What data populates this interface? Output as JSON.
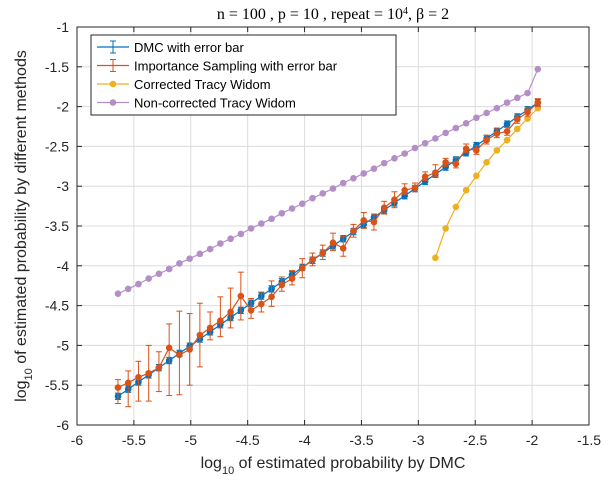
{
  "chart_data": {
    "type": "line",
    "title": "n = 100 , p = 10 , repeat = 10^4, β = 2",
    "title_parts": {
      "prefix": "n = 100 , p = 10 , repeat = 10",
      "sup": "4",
      "suffix": ", β = 2"
    },
    "xlabel": "log10 of estimated probability by DMC",
    "xlabel_parts": {
      "pre": "log",
      "sub": "10",
      "post": " of estimated probability by DMC"
    },
    "ylabel": "log10 of estimated probability by different methods",
    "ylabel_parts": {
      "pre": "log",
      "sub": "10",
      "post": " of estimated probability by different methods"
    },
    "xlim": [
      -6,
      -1.5
    ],
    "ylim": [
      -6,
      -1
    ],
    "x_ticks": [
      -6,
      -5.5,
      -5,
      -4.5,
      -4,
      -3.5,
      -3,
      -2.5,
      -2,
      -1.5
    ],
    "x_tick_labels": [
      "-6",
      "-5.5",
      "-5",
      "-4.5",
      "-4",
      "-3.5",
      "-3",
      "-2.5",
      "-2",
      "-1.5"
    ],
    "y_ticks": [
      -6,
      -5.5,
      -5,
      -4.5,
      -4,
      -3.5,
      -3,
      -2.5,
      -2,
      -1.5,
      -1
    ],
    "y_tick_labels": [
      "-6",
      "-5.5",
      "-5",
      "-4.5",
      "-4",
      "-3.5",
      "-3",
      "-2.5",
      "-2",
      "-1.5",
      "-1"
    ],
    "grid": true,
    "legend_position": "top-left",
    "series": [
      {
        "name": "DMC with error bar",
        "color": "#0072bd",
        "marker": "dot",
        "errorbar": true,
        "x": [
          -5.64,
          -5.55,
          -5.46,
          -5.37,
          -5.28,
          -5.19,
          -5.1,
          -5.01,
          -4.92,
          -4.83,
          -4.74,
          -4.65,
          -4.56,
          -4.47,
          -4.38,
          -4.29,
          -4.2,
          -4.11,
          -4.02,
          -3.93,
          -3.84,
          -3.75,
          -3.66,
          -3.57,
          -3.48,
          -3.39,
          -3.3,
          -3.21,
          -3.12,
          -3.03,
          -2.94,
          -2.85,
          -2.76,
          -2.67,
          -2.58,
          -2.49,
          -2.4,
          -2.31,
          -2.22,
          -2.13,
          -2.04,
          -1.95
        ],
        "y": [
          -5.64,
          -5.55,
          -5.46,
          -5.37,
          -5.28,
          -5.19,
          -5.1,
          -5.01,
          -4.92,
          -4.83,
          -4.74,
          -4.65,
          -4.56,
          -4.47,
          -4.38,
          -4.29,
          -4.2,
          -4.11,
          -4.02,
          -3.93,
          -3.84,
          -3.75,
          -3.66,
          -3.57,
          -3.48,
          -3.39,
          -3.3,
          -3.21,
          -3.12,
          -3.03,
          -2.94,
          -2.85,
          -2.76,
          -2.67,
          -2.58,
          -2.49,
          -2.4,
          -2.31,
          -2.22,
          -2.13,
          -2.04,
          -1.95
        ],
        "err": [
          0.04,
          0.04,
          0.04,
          0.04,
          0.04,
          0.04,
          0.04,
          0.04,
          0.04,
          0.04,
          0.04,
          0.04,
          0.04,
          0.04,
          0.04,
          0.04,
          0.04,
          0.04,
          0.04,
          0.04,
          0.04,
          0.04,
          0.04,
          0.04,
          0.04,
          0.04,
          0.04,
          0.04,
          0.04,
          0.04,
          0.04,
          0.04,
          0.04,
          0.04,
          0.04,
          0.04,
          0.04,
          0.04,
          0.04,
          0.04,
          0.04,
          0.04
        ]
      },
      {
        "name": "Importance Sampling with error bar",
        "color": "#d95319",
        "marker": "dot",
        "errorbar": true,
        "x": [
          -5.64,
          -5.55,
          -5.46,
          -5.37,
          -5.28,
          -5.19,
          -5.1,
          -5.01,
          -4.92,
          -4.83,
          -4.74,
          -4.65,
          -4.56,
          -4.47,
          -4.38,
          -4.29,
          -4.2,
          -4.11,
          -4.02,
          -3.93,
          -3.84,
          -3.75,
          -3.66,
          -3.57,
          -3.48,
          -3.39,
          -3.3,
          -3.21,
          -3.12,
          -3.03,
          -2.94,
          -2.85,
          -2.76,
          -2.67,
          -2.58,
          -2.49,
          -2.4,
          -2.31,
          -2.22,
          -2.13,
          -2.04,
          -1.95
        ],
        "y": [
          -5.53,
          -5.47,
          -5.4,
          -5.35,
          -5.28,
          -5.03,
          -5.12,
          -5.05,
          -4.87,
          -4.78,
          -4.69,
          -4.58,
          -4.38,
          -4.56,
          -4.48,
          -4.39,
          -4.24,
          -4.16,
          -4.03,
          -3.92,
          -3.84,
          -3.71,
          -3.78,
          -3.56,
          -3.43,
          -3.45,
          -3.27,
          -3.17,
          -3.05,
          -3.02,
          -2.88,
          -2.83,
          -2.7,
          -2.72,
          -2.53,
          -2.55,
          -2.42,
          -2.34,
          -2.31,
          -2.16,
          -2.07,
          -1.95
        ],
        "err_low": [
          0.2,
          0.3,
          0.3,
          0.35,
          0.3,
          0.6,
          0.5,
          0.45,
          0.4,
          0.15,
          0.2,
          0.2,
          0.3,
          0.1,
          0.1,
          0.12,
          0.08,
          0.08,
          0.12,
          0.08,
          0.08,
          0.1,
          0.1,
          0.08,
          0.1,
          0.1,
          0.08,
          0.1,
          0.05,
          0.05,
          0.05,
          0.05,
          0.05,
          0.05,
          0.05,
          0.05,
          0.05,
          0.05,
          0.05,
          0.05,
          0.05,
          0.05
        ],
        "err_high": [
          0.1,
          0.15,
          0.2,
          0.35,
          0.2,
          0.3,
          0.55,
          0.45,
          0.4,
          0.2,
          0.3,
          0.3,
          0.3,
          0.15,
          0.15,
          0.2,
          0.1,
          0.1,
          0.12,
          0.08,
          0.1,
          0.12,
          0.15,
          0.08,
          0.1,
          0.1,
          0.08,
          0.1,
          0.08,
          0.06,
          0.06,
          0.1,
          0.05,
          0.08,
          0.06,
          0.06,
          0.06,
          0.06,
          0.05,
          0.05,
          0.05,
          0.05
        ]
      },
      {
        "name": "Corrected Tracy Widom",
        "color": "#edb120",
        "marker": "dot",
        "errorbar": false,
        "x": [
          -2.85,
          -2.76,
          -2.67,
          -2.58,
          -2.49,
          -2.4,
          -2.31,
          -2.22,
          -2.13,
          -2.04,
          -1.95
        ],
        "y": [
          -3.9,
          -3.53,
          -3.26,
          -3.05,
          -2.87,
          -2.7,
          -2.55,
          -2.42,
          -2.28,
          -2.15,
          -2.02
        ]
      },
      {
        "name": "Non-corrected Tracy Widom",
        "color": "#b48fc7",
        "marker": "dot",
        "errorbar": false,
        "x": [
          -5.64,
          -5.55,
          -5.46,
          -5.37,
          -5.28,
          -5.19,
          -5.1,
          -5.01,
          -4.92,
          -4.83,
          -4.74,
          -4.65,
          -4.56,
          -4.47,
          -4.38,
          -4.29,
          -4.2,
          -4.11,
          -4.02,
          -3.93,
          -3.84,
          -3.75,
          -3.66,
          -3.57,
          -3.48,
          -3.39,
          -3.3,
          -3.21,
          -3.12,
          -3.03,
          -2.94,
          -2.85,
          -2.76,
          -2.67,
          -2.58,
          -2.49,
          -2.4,
          -2.31,
          -2.22,
          -2.13,
          -2.04,
          -1.95
        ],
        "y": [
          -4.35,
          -4.29,
          -4.23,
          -4.16,
          -4.1,
          -4.04,
          -3.97,
          -3.91,
          -3.85,
          -3.79,
          -3.72,
          -3.66,
          -3.6,
          -3.53,
          -3.47,
          -3.41,
          -3.34,
          -3.28,
          -3.22,
          -3.15,
          -3.09,
          -3.03,
          -2.96,
          -2.9,
          -2.84,
          -2.78,
          -2.71,
          -2.65,
          -2.59,
          -2.52,
          -2.46,
          -2.4,
          -2.33,
          -2.27,
          -2.21,
          -2.14,
          -2.08,
          -2.02,
          -1.95,
          -1.89,
          -1.83,
          -1.53
        ]
      }
    ]
  }
}
